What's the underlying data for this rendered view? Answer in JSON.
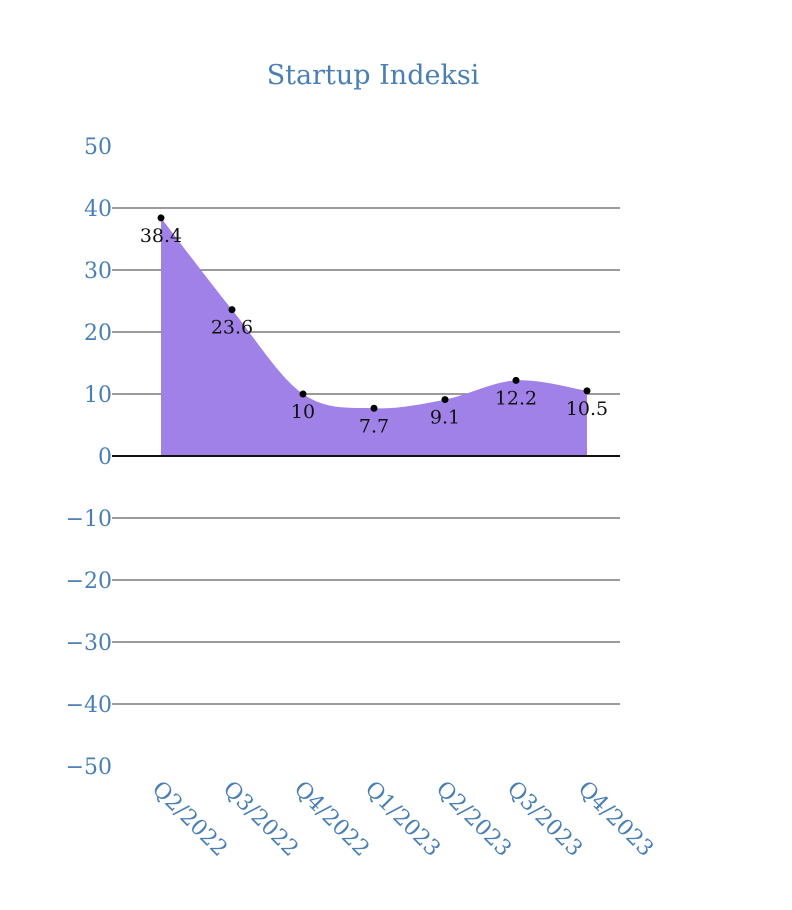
{
  "chart_data": {
    "type": "area",
    "title": "Startup Indeksi",
    "categories": [
      "Q2/2022",
      "Q3/2022",
      "Q4/2022",
      "Q1/2023",
      "Q2/2023",
      "Q3/2023",
      "Q4/2023"
    ],
    "values": [
      38.4,
      23.6,
      10,
      7.7,
      9.1,
      12.2,
      10.5
    ],
    "data_labels": [
      "38.4",
      "23.6",
      "10",
      "7.7",
      "9.1",
      "12.2",
      "10.5"
    ],
    "ylim": [
      -50,
      50
    ],
    "yticks": [
      50,
      40,
      30,
      20,
      10,
      0,
      -10,
      -20,
      -30,
      -40,
      -50
    ],
    "ytick_labels": [
      "50",
      "40",
      "30",
      "20",
      "10",
      "0",
      "−10",
      "−20",
      "−30",
      "−40",
      "−50"
    ],
    "xlabel": "",
    "ylabel": "",
    "grid": true,
    "smooth": true,
    "legend": false,
    "colors": {
      "fill": "#9f81e8",
      "title": "#4a7fb5",
      "ticks": "#4a7fb5",
      "grid": "#7a7a7a",
      "zero_line": "#111111",
      "markers": "#000000",
      "labels": "#111111"
    }
  }
}
